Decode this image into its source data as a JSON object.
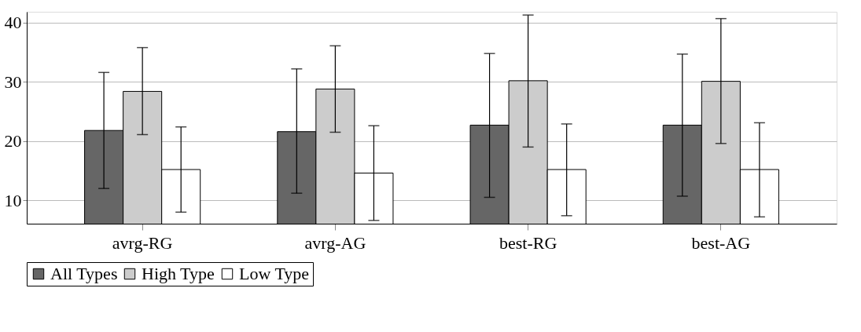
{
  "chart_data": {
    "type": "bar",
    "categories": [
      "avrg-RG",
      "avrg-AG",
      "best-RG",
      "best-AG"
    ],
    "series": [
      {
        "name": "All Types",
        "color": "#666666",
        "values": [
          21.8,
          21.6,
          22.7,
          22.7
        ],
        "errors": [
          [
            12.0,
            31.6
          ],
          [
            11.2,
            32.2
          ],
          [
            10.5,
            34.8
          ],
          [
            10.7,
            34.7
          ]
        ]
      },
      {
        "name": "High Type",
        "color": "#cccccc",
        "values": [
          28.4,
          28.8,
          30.2,
          30.1
        ],
        "errors": [
          [
            21.1,
            35.8
          ],
          [
            21.5,
            36.1
          ],
          [
            19.0,
            41.3
          ],
          [
            19.6,
            40.7
          ]
        ]
      },
      {
        "name": "Low Type",
        "color": "#ffffff",
        "values": [
          15.2,
          14.6,
          15.2,
          15.2
        ],
        "errors": [
          [
            8.0,
            22.4
          ],
          [
            6.6,
            22.6
          ],
          [
            7.4,
            22.9
          ],
          [
            7.2,
            23.1
          ]
        ]
      }
    ],
    "ylim": [
      6.05,
      41.85
    ],
    "yticks": [
      10,
      20,
      30,
      40
    ],
    "grid": "y",
    "legend": "bottom"
  }
}
